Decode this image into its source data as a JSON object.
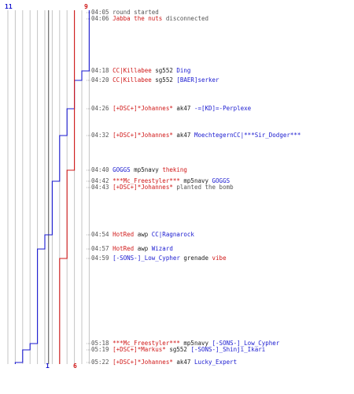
{
  "counts": {
    "ct_start": "11",
    "t_start": "9",
    "ct_end": "1",
    "t_end": "6"
  },
  "colors": {
    "ct": "#1a1ad0",
    "t": "#d01818",
    "grid": "#c4c4c4",
    "axis": "#6a6a6a"
  },
  "events": [
    {
      "time": "04:05",
      "type": "system",
      "text": "round started"
    },
    {
      "time": "04:06",
      "type": "disconnect",
      "player": "Jabba the nuts",
      "text": "disconnected"
    },
    {
      "time": "04:18",
      "type": "kill",
      "killer": "CC|Killabee",
      "weapon": "sg552",
      "victim": "Ding",
      "killer_team": "t",
      "victim_team": "ct"
    },
    {
      "time": "04:20",
      "type": "kill",
      "killer": "CC|Killabee",
      "weapon": "sg552",
      "victim": "[BAER]serker",
      "killer_team": "t",
      "victim_team": "ct"
    },
    {
      "time": "04:26",
      "type": "kill",
      "killer": "[+DSC+]*Johannes*",
      "weapon": "ak47",
      "victim": "-=[KD]=-Perplexe",
      "killer_team": "t",
      "victim_team": "ct"
    },
    {
      "time": "04:32",
      "type": "kill",
      "killer": "[+DSC+]*Johannes*",
      "weapon": "ak47",
      "victim": "MoechtegernCC|***Sir_Dodger***",
      "killer_team": "t",
      "victim_team": "ct"
    },
    {
      "time": "04:40",
      "type": "kill",
      "killer": "GOGGS",
      "weapon": "mp5navy",
      "victim": "theking",
      "killer_team": "ct",
      "victim_team": "t"
    },
    {
      "time": "04:42",
      "type": "kill",
      "killer": "***Mc_Freestyler***",
      "weapon": "mp5navy",
      "victim": "GOGGS",
      "killer_team": "t",
      "victim_team": "ct"
    },
    {
      "time": "04:43",
      "type": "bomb",
      "player": "[+DSC+]*Johannes*",
      "text": "planted the bomb"
    },
    {
      "time": "04:54",
      "type": "kill",
      "killer": "HotRed",
      "weapon": "awp",
      "victim": "CC|Ragnarock",
      "killer_team": "t",
      "victim_team": "ct"
    },
    {
      "time": "04:57",
      "type": "kill",
      "killer": "HotRed",
      "weapon": "awp",
      "victim": "Wizard",
      "killer_team": "t",
      "victim_team": "ct"
    },
    {
      "time": "04:59",
      "type": "kill",
      "killer": "[-SONS-]_Low_Cypher",
      "weapon": "grenade",
      "victim": "vibe",
      "killer_team": "ct",
      "victim_team": "t"
    },
    {
      "time": "05:18",
      "type": "kill",
      "killer": "***Mc_Freestyler***",
      "weapon": "mp5navy",
      "victim": "[-SONS-]_Low_Cypher",
      "killer_team": "t",
      "victim_team": "ct"
    },
    {
      "time": "05:19",
      "type": "kill",
      "killer": "[+DSC+]*Markus*",
      "weapon": "sg552",
      "victim": "[-SONS-]_Shinji_Ikari",
      "killer_team": "t",
      "victim_team": "ct"
    },
    {
      "time": "05:22",
      "type": "kill",
      "killer": "[+DSC+]*Johannes*",
      "weapon": "ak47",
      "victim": "Lucky_Expert",
      "killer_team": "t",
      "victim_team": "ct"
    }
  ]
}
